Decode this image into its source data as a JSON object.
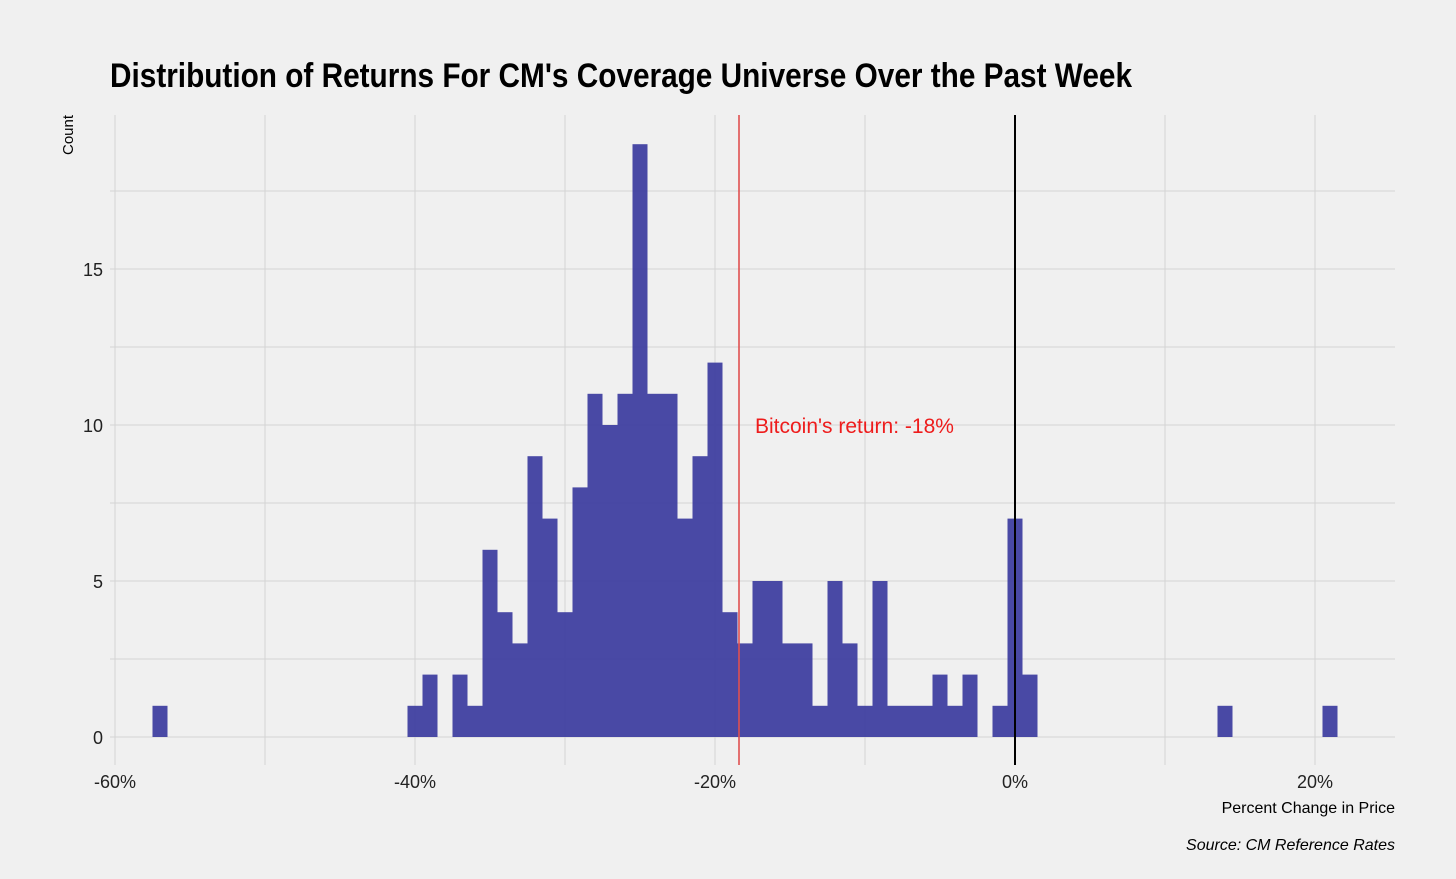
{
  "chart_data": {
    "type": "histogram",
    "title": "Distribution of Returns For CM's Coverage Universe Over the Past Week",
    "xlabel": "Percent Change in Price",
    "ylabel": "Count",
    "caption": "Source: CM Reference Rates",
    "bin_width": 1,
    "xlim": [
      -60,
      25
    ],
    "ylim": [
      -0.8,
      20
    ],
    "x_ticks": [
      -60,
      -40,
      -20,
      0,
      20
    ],
    "x_tick_labels": [
      "-60%",
      "-40%",
      "-20%",
      "0%",
      "20%"
    ],
    "y_ticks": [
      0,
      5,
      10,
      15
    ],
    "y_tick_labels": [
      "0",
      "5",
      "10",
      "15"
    ],
    "grid": true,
    "bar_color": "#3b3b9e",
    "bins": [
      {
        "x": -57,
        "count": 1
      },
      {
        "x": -40,
        "count": 1
      },
      {
        "x": -39,
        "count": 2
      },
      {
        "x": -37,
        "count": 2
      },
      {
        "x": -36,
        "count": 1
      },
      {
        "x": -35,
        "count": 6
      },
      {
        "x": -34,
        "count": 4
      },
      {
        "x": -33,
        "count": 3
      },
      {
        "x": -32,
        "count": 9
      },
      {
        "x": -31,
        "count": 7
      },
      {
        "x": -30,
        "count": 4
      },
      {
        "x": -29,
        "count": 8
      },
      {
        "x": -28,
        "count": 11
      },
      {
        "x": -27,
        "count": 10
      },
      {
        "x": -26,
        "count": 11
      },
      {
        "x": -25,
        "count": 19
      },
      {
        "x": -24,
        "count": 11
      },
      {
        "x": -23,
        "count": 11
      },
      {
        "x": -22,
        "count": 7
      },
      {
        "x": -21,
        "count": 9
      },
      {
        "x": -20,
        "count": 12
      },
      {
        "x": -19,
        "count": 4
      },
      {
        "x": -18,
        "count": 3
      },
      {
        "x": -17,
        "count": 5
      },
      {
        "x": -16,
        "count": 5
      },
      {
        "x": -15,
        "count": 3
      },
      {
        "x": -14,
        "count": 3
      },
      {
        "x": -13,
        "count": 1
      },
      {
        "x": -12,
        "count": 5
      },
      {
        "x": -11,
        "count": 3
      },
      {
        "x": -10,
        "count": 1
      },
      {
        "x": -9,
        "count": 5
      },
      {
        "x": -8,
        "count": 1
      },
      {
        "x": -7,
        "count": 1
      },
      {
        "x": -6,
        "count": 1
      },
      {
        "x": -5,
        "count": 2
      },
      {
        "x": -4,
        "count": 1
      },
      {
        "x": -3,
        "count": 2
      },
      {
        "x": -1,
        "count": 1
      },
      {
        "x": 0,
        "count": 7
      },
      {
        "x": 1,
        "count": 2
      },
      {
        "x": 14,
        "count": 1
      },
      {
        "x": 21,
        "count": 1
      }
    ],
    "reference_lines": [
      {
        "x": -18.4,
        "color": "#e05050",
        "label": "Bitcoin's return: -18%",
        "label_color": "#ee1c1c"
      },
      {
        "x": 0,
        "color": "#000000"
      }
    ]
  }
}
